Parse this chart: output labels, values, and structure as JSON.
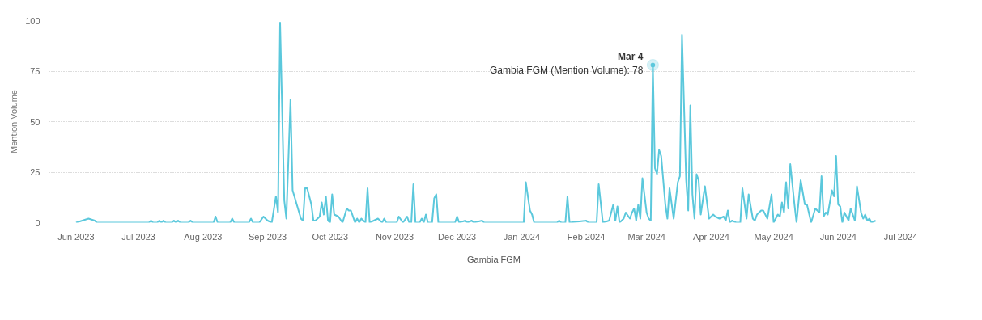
{
  "chart_data": {
    "type": "line",
    "ylabel": "Mention Volume",
    "xlim": [
      "2023-05-19",
      "2024-07-08"
    ],
    "ylim": [
      0,
      100
    ],
    "yticks": [
      0,
      25,
      50,
      75,
      100
    ],
    "xticks": [
      {
        "value": "2023-06-01",
        "label": "Jun 2023"
      },
      {
        "value": "2023-07-01",
        "label": "Jul 2023"
      },
      {
        "value": "2023-08-01",
        "label": "Aug 2023"
      },
      {
        "value": "2023-09-01",
        "label": "Sep 2023"
      },
      {
        "value": "2023-10-01",
        "label": "Oct 2023"
      },
      {
        "value": "2023-11-01",
        "label": "Nov 2023"
      },
      {
        "value": "2023-12-01",
        "label": "Dec 2023"
      },
      {
        "value": "2024-01-01",
        "label": "Jan 2024"
      },
      {
        "value": "2024-02-01",
        "label": "Feb 2024"
      },
      {
        "value": "2024-03-01",
        "label": "Mar 2024"
      },
      {
        "value": "2024-04-01",
        "label": "Apr 2024"
      },
      {
        "value": "2024-05-01",
        "label": "May 2024"
      },
      {
        "value": "2024-06-01",
        "label": "Jun 2024"
      },
      {
        "value": "2024-07-01",
        "label": "Jul 2024"
      }
    ],
    "grid": "y",
    "legend": "bottom",
    "marker": "none",
    "line_style": "solid",
    "annotations": [
      {
        "text": "Mar 4",
        "x": "2024-03-04",
        "y": 78
      },
      {
        "text": "Gambia FGM (Mention Volume): 78",
        "x": "2024-03-04",
        "y": 78
      }
    ],
    "x": [
      "2023-06-01",
      "2023-06-07",
      "2023-06-10",
      "2023-06-11",
      "2023-07-06",
      "2023-07-07",
      "2023-07-08",
      "2023-07-10",
      "2023-07-11",
      "2023-07-12",
      "2023-07-13",
      "2023-07-14",
      "2023-07-17",
      "2023-07-18",
      "2023-07-19",
      "2023-07-20",
      "2023-07-21",
      "2023-07-25",
      "2023-07-26",
      "2023-07-27",
      "2023-08-06",
      "2023-08-07",
      "2023-08-08",
      "2023-08-14",
      "2023-08-15",
      "2023-08-16",
      "2023-08-23",
      "2023-08-24",
      "2023-08-25",
      "2023-08-28",
      "2023-08-30",
      "2023-09-01",
      "2023-09-03",
      "2023-09-05",
      "2023-09-06",
      "2023-09-07",
      "2023-09-09",
      "2023-09-10",
      "2023-09-12",
      "2023-09-13",
      "2023-09-15",
      "2023-09-17",
      "2023-09-18",
      "2023-09-19",
      "2023-09-20",
      "2023-09-22",
      "2023-09-23",
      "2023-09-24",
      "2023-09-26",
      "2023-09-27",
      "2023-09-28",
      "2023-09-29",
      "2023-09-30",
      "2023-10-01",
      "2023-10-02",
      "2023-10-03",
      "2023-10-05",
      "2023-10-07",
      "2023-10-09",
      "2023-10-10",
      "2023-10-11",
      "2023-10-13",
      "2023-10-14",
      "2023-10-15",
      "2023-10-16",
      "2023-10-18",
      "2023-10-19",
      "2023-10-20",
      "2023-10-24",
      "2023-10-26",
      "2023-10-27",
      "2023-10-28",
      "2023-11-02",
      "2023-11-03",
      "2023-11-05",
      "2023-11-07",
      "2023-11-08",
      "2023-11-09",
      "2023-11-10",
      "2023-11-11",
      "2023-11-13",
      "2023-11-14",
      "2023-11-15",
      "2023-11-16",
      "2023-11-17",
      "2023-11-19",
      "2023-11-20",
      "2023-11-21",
      "2023-11-22",
      "2023-11-30",
      "2023-12-01",
      "2023-12-02",
      "2023-12-05",
      "2023-12-06",
      "2023-12-08",
      "2023-12-09",
      "2023-12-13",
      "2023-12-14",
      "2024-01-02",
      "2024-01-03",
      "2024-01-05",
      "2024-01-06",
      "2024-01-07",
      "2024-01-18",
      "2024-01-19",
      "2024-01-20",
      "2024-01-22",
      "2024-01-23",
      "2024-01-24",
      "2024-02-01",
      "2024-02-02",
      "2024-02-06",
      "2024-02-07",
      "2024-02-09",
      "2024-02-12",
      "2024-02-14",
      "2024-02-15",
      "2024-02-16",
      "2024-02-17",
      "2024-02-19",
      "2024-02-20",
      "2024-02-22",
      "2024-02-23",
      "2024-02-24",
      "2024-02-25",
      "2024-02-26",
      "2024-02-27",
      "2024-02-28",
      "2024-03-01",
      "2024-03-02",
      "2024-03-03",
      "2024-03-04",
      "2024-03-05",
      "2024-03-06",
      "2024-03-07",
      "2024-03-08",
      "2024-03-10",
      "2024-03-11",
      "2024-03-12",
      "2024-03-14",
      "2024-03-16",
      "2024-03-17",
      "2024-03-18",
      "2024-03-20",
      "2024-03-21",
      "2024-03-22",
      "2024-03-23",
      "2024-03-24",
      "2024-03-25",
      "2024-03-26",
      "2024-03-27",
      "2024-03-29",
      "2024-03-31",
      "2024-04-02",
      "2024-04-03",
      "2024-04-05",
      "2024-04-07",
      "2024-04-08",
      "2024-04-09",
      "2024-04-10",
      "2024-04-11",
      "2024-04-13",
      "2024-04-15",
      "2024-04-16",
      "2024-04-18",
      "2024-04-19",
      "2024-04-21",
      "2024-04-22",
      "2024-04-23",
      "2024-04-24",
      "2024-04-25",
      "2024-04-26",
      "2024-04-28",
      "2024-04-30",
      "2024-05-01",
      "2024-05-03",
      "2024-05-04",
      "2024-05-05",
      "2024-05-06",
      "2024-05-07",
      "2024-05-08",
      "2024-05-09",
      "2024-05-11",
      "2024-05-12",
      "2024-05-14",
      "2024-05-16",
      "2024-05-17",
      "2024-05-19",
      "2024-05-21",
      "2024-05-23",
      "2024-05-24",
      "2024-05-25",
      "2024-05-26",
      "2024-05-27",
      "2024-05-29",
      "2024-05-30",
      "2024-05-31",
      "2024-06-01",
      "2024-06-02",
      "2024-06-03",
      "2024-06-04",
      "2024-06-06",
      "2024-06-07",
      "2024-06-09",
      "2024-06-10",
      "2024-06-12",
      "2024-06-13",
      "2024-06-14",
      "2024-06-15",
      "2024-06-16",
      "2024-06-17",
      "2024-06-19"
    ],
    "series": [
      {
        "name": "Gambia FGM",
        "color": "#5bc8dc",
        "values": [
          0,
          2,
          1,
          0,
          0,
          1,
          0,
          0,
          1,
          0,
          1,
          0,
          0,
          1,
          0,
          1,
          0,
          0,
          1,
          0,
          0,
          3,
          0,
          0,
          2,
          0,
          0,
          2,
          0,
          0,
          3,
          1,
          0,
          13,
          5,
          99,
          11,
          2,
          61,
          16,
          9,
          2,
          1,
          17,
          17,
          9,
          1,
          1,
          3,
          10,
          4,
          13,
          1,
          0,
          14,
          4,
          3,
          0,
          7,
          6,
          6,
          0,
          2,
          0,
          2,
          0,
          17,
          0,
          2,
          0,
          2,
          0,
          0,
          3,
          0,
          3,
          0,
          0,
          19,
          0,
          0,
          2,
          0,
          4,
          0,
          0,
          12,
          14,
          0,
          0,
          3,
          0,
          1,
          0,
          1,
          0,
          1,
          0,
          0,
          20,
          6,
          4,
          0,
          0,
          1,
          0,
          0,
          13,
          0,
          1,
          0,
          0,
          19,
          0,
          1,
          9,
          1,
          8,
          0,
          2,
          5,
          2,
          5,
          7,
          1,
          9,
          2,
          22,
          5,
          2,
          1,
          78,
          27,
          24,
          36,
          33,
          9,
          2,
          17,
          2,
          20,
          23,
          93,
          21,
          6,
          58,
          14,
          2,
          24,
          21,
          4,
          18,
          2,
          4,
          3,
          2,
          3,
          1,
          6,
          0,
          1,
          0,
          0,
          17,
          2,
          14,
          2,
          1,
          4,
          5,
          6,
          6,
          2,
          14,
          0,
          4,
          3,
          10,
          5,
          20,
          7,
          29,
          9,
          0,
          21,
          9,
          9,
          0,
          7,
          5,
          23,
          3,
          5,
          4,
          16,
          13,
          33,
          9,
          8,
          0,
          5,
          1,
          7,
          1,
          18,
          5,
          2,
          4,
          1,
          2,
          0,
          1
        ]
      }
    ]
  }
}
